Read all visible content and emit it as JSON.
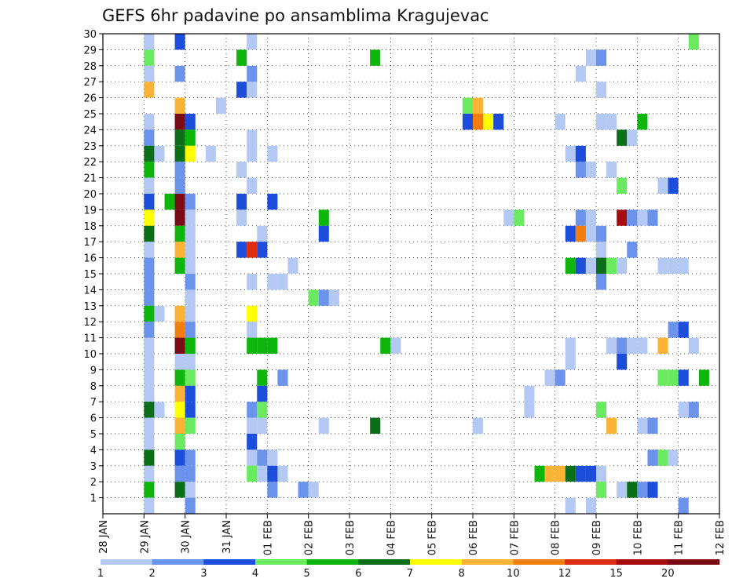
{
  "chart_data": {
    "type": "heatmap",
    "title": "GEFS 6hr padavine po ansamblima Kragujevac",
    "xlabel": "",
    "ylabel": "",
    "x_ticks": [
      "28 JAN",
      "29 JAN",
      "30 JAN",
      "31 JAN",
      "01 FEB",
      "02 FEB",
      "03 FEB",
      "04 FEB",
      "05 FEB",
      "06 FEB",
      "07 FEB",
      "08 FEB",
      "09 FEB",
      "10 FEB",
      "11 FEB",
      "12 FEB"
    ],
    "y_ticks": [
      "1",
      "2",
      "3",
      "4",
      "5",
      "6",
      "7",
      "8",
      "9",
      "10",
      "11",
      "12",
      "13",
      "14",
      "15",
      "16",
      "17",
      "18",
      "19",
      "20",
      "21",
      "22",
      "23",
      "24",
      "25",
      "26",
      "27",
      "28",
      "29",
      "30"
    ],
    "x_range": [
      0,
      60
    ],
    "y_range": [
      0,
      30
    ],
    "step_hours": 6,
    "grid": true,
    "legend": {
      "placement": "bottom",
      "labels": [
        "1",
        "2",
        "3",
        "4",
        "5",
        "6",
        "7",
        "8",
        "10",
        "12",
        "15",
        "20"
      ],
      "colors": [
        "#b4c8f4",
        "#6b93eb",
        "#1d4ddb",
        "#6aea5e",
        "#0db50d",
        "#0b6e18",
        "#ffff00",
        "#fbb336",
        "#f47e0d",
        "#de2e12",
        "#a60c0c",
        "#7a0a14"
      ]
    },
    "cells": [
      {
        "member": 29,
        "col": 4,
        "lvl": 4
      },
      {
        "member": 29,
        "col": 13,
        "lvl": 5
      },
      {
        "member": 29,
        "col": 26,
        "lvl": 5
      },
      {
        "member": 29,
        "col": 47,
        "lvl": 1
      },
      {
        "member": 29,
        "col": 48,
        "lvl": 2
      },
      {
        "member": 28,
        "col": 4,
        "lvl": 1
      },
      {
        "member": 28,
        "col": 7,
        "lvl": 2
      },
      {
        "member": 28,
        "col": 14,
        "lvl": 2
      },
      {
        "member": 28,
        "col": 46,
        "lvl": 1
      },
      {
        "member": 27,
        "col": 4,
        "lvl": 8
      },
      {
        "member": 27,
        "col": 13,
        "lvl": 3
      },
      {
        "member": 27,
        "col": 14,
        "lvl": 1
      },
      {
        "member": 27,
        "col": 48,
        "lvl": 1
      },
      {
        "member": 26,
        "col": 7,
        "lvl": 8
      },
      {
        "member": 26,
        "col": 11,
        "lvl": 1
      },
      {
        "member": 26,
        "col": 35,
        "lvl": 4
      },
      {
        "member": 26,
        "col": 36,
        "lvl": 8
      },
      {
        "member": 25,
        "col": 4,
        "lvl": 1
      },
      {
        "member": 25,
        "col": 7,
        "lvl": 12
      },
      {
        "member": 25,
        "col": 8,
        "lvl": 3
      },
      {
        "member": 25,
        "col": 35,
        "lvl": 3
      },
      {
        "member": 25,
        "col": 36,
        "lvl": 9
      },
      {
        "member": 25,
        "col": 37,
        "lvl": 7
      },
      {
        "member": 25,
        "col": 38,
        "lvl": 3
      },
      {
        "member": 25,
        "col": 44,
        "lvl": 1
      },
      {
        "member": 25,
        "col": 48,
        "lvl": 1
      },
      {
        "member": 25,
        "col": 49,
        "lvl": 1
      },
      {
        "member": 25,
        "col": 52,
        "lvl": 5
      },
      {
        "member": 24,
        "col": 4,
        "lvl": 2
      },
      {
        "member": 24,
        "col": 7,
        "lvl": 6
      },
      {
        "member": 24,
        "col": 8,
        "lvl": 5
      },
      {
        "member": 24,
        "col": 14,
        "lvl": 1
      },
      {
        "member": 24,
        "col": 50,
        "lvl": 6
      },
      {
        "member": 24,
        "col": 51,
        "lvl": 1
      },
      {
        "member": 23,
        "col": 4,
        "lvl": 6
      },
      {
        "member": 23,
        "col": 5,
        "lvl": 1
      },
      {
        "member": 23,
        "col": 7,
        "lvl": 6
      },
      {
        "member": 23,
        "col": 8,
        "lvl": 7
      },
      {
        "member": 23,
        "col": 10,
        "lvl": 1
      },
      {
        "member": 23,
        "col": 14,
        "lvl": 1
      },
      {
        "member": 23,
        "col": 16,
        "lvl": 1
      },
      {
        "member": 23,
        "col": 45,
        "lvl": 1
      },
      {
        "member": 23,
        "col": 46,
        "lvl": 3
      },
      {
        "member": 22,
        "col": 4,
        "lvl": 5
      },
      {
        "member": 22,
        "col": 7,
        "lvl": 2
      },
      {
        "member": 22,
        "col": 13,
        "lvl": 1
      },
      {
        "member": 22,
        "col": 46,
        "lvl": 2
      },
      {
        "member": 22,
        "col": 47,
        "lvl": 1
      },
      {
        "member": 22,
        "col": 49,
        "lvl": 1
      },
      {
        "member": 21,
        "col": 4,
        "lvl": 1
      },
      {
        "member": 21,
        "col": 7,
        "lvl": 2
      },
      {
        "member": 21,
        "col": 14,
        "lvl": 1
      },
      {
        "member": 21,
        "col": 50,
        "lvl": 4
      },
      {
        "member": 21,
        "col": 54,
        "lvl": 1
      },
      {
        "member": 21,
        "col": 55,
        "lvl": 3
      },
      {
        "member": 20,
        "col": 4,
        "lvl": 3
      },
      {
        "member": 20,
        "col": 6,
        "lvl": 5
      },
      {
        "member": 20,
        "col": 7,
        "lvl": 12
      },
      {
        "member": 20,
        "col": 8,
        "lvl": 2
      },
      {
        "member": 20,
        "col": 13,
        "lvl": 3
      },
      {
        "member": 20,
        "col": 16,
        "lvl": 3
      },
      {
        "member": 19,
        "col": 4,
        "lvl": 7
      },
      {
        "member": 19,
        "col": 7,
        "lvl": 12
      },
      {
        "member": 19,
        "col": 8,
        "lvl": 1
      },
      {
        "member": 19,
        "col": 13,
        "lvl": 1
      },
      {
        "member": 19,
        "col": 21,
        "lvl": 5
      },
      {
        "member": 19,
        "col": 39,
        "lvl": 1
      },
      {
        "member": 19,
        "col": 40,
        "lvl": 4
      },
      {
        "member": 19,
        "col": 46,
        "lvl": 2
      },
      {
        "member": 19,
        "col": 47,
        "lvl": 1
      },
      {
        "member": 19,
        "col": 50,
        "lvl": 11
      },
      {
        "member": 19,
        "col": 51,
        "lvl": 2
      },
      {
        "member": 19,
        "col": 52,
        "lvl": 1
      },
      {
        "member": 19,
        "col": 53,
        "lvl": 2
      },
      {
        "member": 18,
        "col": 4,
        "lvl": 6
      },
      {
        "member": 18,
        "col": 7,
        "lvl": 5
      },
      {
        "member": 18,
        "col": 8,
        "lvl": 1
      },
      {
        "member": 18,
        "col": 15,
        "lvl": 1
      },
      {
        "member": 18,
        "col": 21,
        "lvl": 3
      },
      {
        "member": 18,
        "col": 45,
        "lvl": 3
      },
      {
        "member": 18,
        "col": 46,
        "lvl": 9
      },
      {
        "member": 18,
        "col": 47,
        "lvl": 1
      },
      {
        "member": 18,
        "col": 48,
        "lvl": 2
      },
      {
        "member": 17,
        "col": 4,
        "lvl": 1
      },
      {
        "member": 17,
        "col": 7,
        "lvl": 8
      },
      {
        "member": 17,
        "col": 8,
        "lvl": 1
      },
      {
        "member": 17,
        "col": 13,
        "lvl": 3
      },
      {
        "member": 17,
        "col": 14,
        "lvl": 10
      },
      {
        "member": 17,
        "col": 15,
        "lvl": 3
      },
      {
        "member": 17,
        "col": 48,
        "lvl": 1
      },
      {
        "member": 17,
        "col": 51,
        "lvl": 2
      },
      {
        "member": 16,
        "col": 4,
        "lvl": 2
      },
      {
        "member": 16,
        "col": 7,
        "lvl": 5
      },
      {
        "member": 16,
        "col": 8,
        "lvl": 1
      },
      {
        "member": 16,
        "col": 18,
        "lvl": 1
      },
      {
        "member": 16,
        "col": 45,
        "lvl": 5
      },
      {
        "member": 16,
        "col": 46,
        "lvl": 3
      },
      {
        "member": 16,
        "col": 47,
        "lvl": 1
      },
      {
        "member": 16,
        "col": 48,
        "lvl": 6
      },
      {
        "member": 16,
        "col": 49,
        "lvl": 4
      },
      {
        "member": 16,
        "col": 50,
        "lvl": 1
      },
      {
        "member": 16,
        "col": 54,
        "lvl": 1
      },
      {
        "member": 16,
        "col": 55,
        "lvl": 1
      },
      {
        "member": 16,
        "col": 56,
        "lvl": 1
      },
      {
        "member": 15,
        "col": 4,
        "lvl": 2
      },
      {
        "member": 15,
        "col": 8,
        "lvl": 2
      },
      {
        "member": 15,
        "col": 14,
        "lvl": 1
      },
      {
        "member": 15,
        "col": 16,
        "lvl": 1
      },
      {
        "member": 15,
        "col": 17,
        "lvl": 1
      },
      {
        "member": 15,
        "col": 48,
        "lvl": 2
      },
      {
        "member": 14,
        "col": 4,
        "lvl": 2
      },
      {
        "member": 14,
        "col": 8,
        "lvl": 1
      },
      {
        "member": 14,
        "col": 20,
        "lvl": 4
      },
      {
        "member": 14,
        "col": 21,
        "lvl": 2
      },
      {
        "member": 14,
        "col": 22,
        "lvl": 1
      },
      {
        "member": 13,
        "col": 4,
        "lvl": 5
      },
      {
        "member": 13,
        "col": 5,
        "lvl": 1
      },
      {
        "member": 13,
        "col": 7,
        "lvl": 8
      },
      {
        "member": 13,
        "col": 8,
        "lvl": 1
      },
      {
        "member": 13,
        "col": 14,
        "lvl": 7
      },
      {
        "member": 12,
        "col": 4,
        "lvl": 2
      },
      {
        "member": 12,
        "col": 7,
        "lvl": 9
      },
      {
        "member": 12,
        "col": 8,
        "lvl": 2
      },
      {
        "member": 12,
        "col": 14,
        "lvl": 1
      },
      {
        "member": 12,
        "col": 55,
        "lvl": 2
      },
      {
        "member": 12,
        "col": 56,
        "lvl": 3
      },
      {
        "member": 11,
        "col": 4,
        "lvl": 1
      },
      {
        "member": 11,
        "col": 7,
        "lvl": 12
      },
      {
        "member": 11,
        "col": 8,
        "lvl": 5
      },
      {
        "member": 11,
        "col": 14,
        "lvl": 5
      },
      {
        "member": 11,
        "col": 15,
        "lvl": 5
      },
      {
        "member": 11,
        "col": 16,
        "lvl": 5
      },
      {
        "member": 11,
        "col": 27,
        "lvl": 5
      },
      {
        "member": 11,
        "col": 28,
        "lvl": 1
      },
      {
        "member": 11,
        "col": 45,
        "lvl": 1
      },
      {
        "member": 11,
        "col": 49,
        "lvl": 1
      },
      {
        "member": 11,
        "col": 50,
        "lvl": 2
      },
      {
        "member": 11,
        "col": 51,
        "lvl": 1
      },
      {
        "member": 11,
        "col": 52,
        "lvl": 1
      },
      {
        "member": 11,
        "col": 54,
        "lvl": 8
      },
      {
        "member": 11,
        "col": 57,
        "lvl": 1
      },
      {
        "member": 10,
        "col": 4,
        "lvl": 1
      },
      {
        "member": 10,
        "col": 7,
        "lvl": 1
      },
      {
        "member": 10,
        "col": 8,
        "lvl": 1
      },
      {
        "member": 10,
        "col": 45,
        "lvl": 1
      },
      {
        "member": 10,
        "col": 50,
        "lvl": 3
      },
      {
        "member": 9,
        "col": 4,
        "lvl": 1
      },
      {
        "member": 9,
        "col": 7,
        "lvl": 5
      },
      {
        "member": 9,
        "col": 8,
        "lvl": 4
      },
      {
        "member": 9,
        "col": 15,
        "lvl": 5
      },
      {
        "member": 9,
        "col": 17,
        "lvl": 2
      },
      {
        "member": 9,
        "col": 43,
        "lvl": 1
      },
      {
        "member": 9,
        "col": 44,
        "lvl": 2
      },
      {
        "member": 9,
        "col": 54,
        "lvl": 4
      },
      {
        "member": 9,
        "col": 55,
        "lvl": 4
      },
      {
        "member": 9,
        "col": 56,
        "lvl": 3
      },
      {
        "member": 9,
        "col": 58,
        "lvl": 5
      },
      {
        "member": 8,
        "col": 4,
        "lvl": 1
      },
      {
        "member": 8,
        "col": 7,
        "lvl": 8
      },
      {
        "member": 8,
        "col": 8,
        "lvl": 3
      },
      {
        "member": 8,
        "col": 15,
        "lvl": 3
      },
      {
        "member": 8,
        "col": 41,
        "lvl": 1
      },
      {
        "member": 7,
        "col": 4,
        "lvl": 6
      },
      {
        "member": 7,
        "col": 5,
        "lvl": 1
      },
      {
        "member": 7,
        "col": 7,
        "lvl": 7
      },
      {
        "member": 7,
        "col": 8,
        "lvl": 3
      },
      {
        "member": 7,
        "col": 14,
        "lvl": 2
      },
      {
        "member": 7,
        "col": 15,
        "lvl": 4
      },
      {
        "member": 7,
        "col": 41,
        "lvl": 1
      },
      {
        "member": 7,
        "col": 48,
        "lvl": 4
      },
      {
        "member": 7,
        "col": 56,
        "lvl": 1
      },
      {
        "member": 7,
        "col": 57,
        "lvl": 2
      },
      {
        "member": 6,
        "col": 4,
        "lvl": 1
      },
      {
        "member": 6,
        "col": 7,
        "lvl": 8
      },
      {
        "member": 6,
        "col": 8,
        "lvl": 4
      },
      {
        "member": 6,
        "col": 14,
        "lvl": 1
      },
      {
        "member": 6,
        "col": 15,
        "lvl": 1
      },
      {
        "member": 6,
        "col": 21,
        "lvl": 1
      },
      {
        "member": 6,
        "col": 26,
        "lvl": 6
      },
      {
        "member": 6,
        "col": 36,
        "lvl": 1
      },
      {
        "member": 6,
        "col": 49,
        "lvl": 8
      },
      {
        "member": 6,
        "col": 52,
        "lvl": 1
      },
      {
        "member": 6,
        "col": 53,
        "lvl": 2
      },
      {
        "member": 5,
        "col": 4,
        "lvl": 1
      },
      {
        "member": 5,
        "col": 7,
        "lvl": 4
      },
      {
        "member": 5,
        "col": 14,
        "lvl": 3
      },
      {
        "member": 4,
        "col": 4,
        "lvl": 6
      },
      {
        "member": 4,
        "col": 7,
        "lvl": 3
      },
      {
        "member": 4,
        "col": 8,
        "lvl": 2
      },
      {
        "member": 4,
        "col": 14,
        "lvl": 1
      },
      {
        "member": 4,
        "col": 15,
        "lvl": 2
      },
      {
        "member": 4,
        "col": 16,
        "lvl": 1
      },
      {
        "member": 4,
        "col": 53,
        "lvl": 2
      },
      {
        "member": 4,
        "col": 54,
        "lvl": 4
      },
      {
        "member": 4,
        "col": 55,
        "lvl": 1
      },
      {
        "member": 3,
        "col": 4,
        "lvl": 1
      },
      {
        "member": 3,
        "col": 7,
        "lvl": 2
      },
      {
        "member": 3,
        "col": 8,
        "lvl": 2
      },
      {
        "member": 3,
        "col": 14,
        "lvl": 4
      },
      {
        "member": 3,
        "col": 15,
        "lvl": 1
      },
      {
        "member": 3,
        "col": 16,
        "lvl": 3
      },
      {
        "member": 3,
        "col": 17,
        "lvl": 1
      },
      {
        "member": 3,
        "col": 42,
        "lvl": 5
      },
      {
        "member": 3,
        "col": 43,
        "lvl": 8
      },
      {
        "member": 3,
        "col": 44,
        "lvl": 8
      },
      {
        "member": 3,
        "col": 45,
        "lvl": 6
      },
      {
        "member": 3,
        "col": 46,
        "lvl": 3
      },
      {
        "member": 3,
        "col": 47,
        "lvl": 3
      },
      {
        "member": 3,
        "col": 48,
        "lvl": 1
      },
      {
        "member": 2,
        "col": 4,
        "lvl": 5
      },
      {
        "member": 2,
        "col": 7,
        "lvl": 6
      },
      {
        "member": 2,
        "col": 8,
        "lvl": 1
      },
      {
        "member": 2,
        "col": 16,
        "lvl": 2
      },
      {
        "member": 2,
        "col": 19,
        "lvl": 2
      },
      {
        "member": 2,
        "col": 20,
        "lvl": 1
      },
      {
        "member": 2,
        "col": 48,
        "lvl": 4
      },
      {
        "member": 2,
        "col": 50,
        "lvl": 1
      },
      {
        "member": 2,
        "col": 51,
        "lvl": 6
      },
      {
        "member": 2,
        "col": 52,
        "lvl": 2
      },
      {
        "member": 2,
        "col": 53,
        "lvl": 3
      },
      {
        "member": 1,
        "col": 4,
        "lvl": 1
      },
      {
        "member": 1,
        "col": 8,
        "lvl": 2
      },
      {
        "member": 1,
        "col": 45,
        "lvl": 1
      },
      {
        "member": 1,
        "col": 47,
        "lvl": 1
      },
      {
        "member": 1,
        "col": 56,
        "lvl": 2
      },
      {
        "member": 30,
        "col": 4,
        "lvl": 1
      },
      {
        "member": 30,
        "col": 7,
        "lvl": 3
      },
      {
        "member": 30,
        "col": 14,
        "lvl": 1
      },
      {
        "member": 30,
        "col": 57,
        "lvl": 4
      }
    ]
  }
}
